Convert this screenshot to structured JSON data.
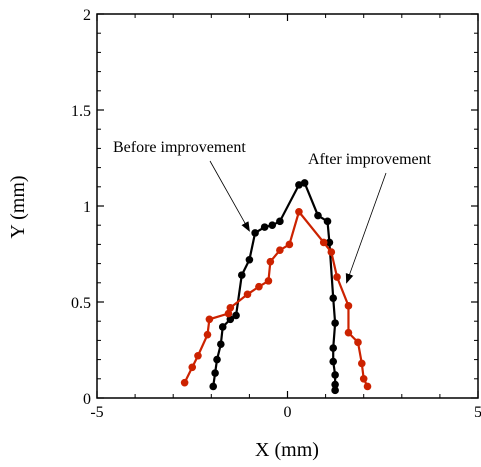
{
  "chart_data": {
    "type": "line",
    "xlabel": "X (mm)",
    "ylabel": "Y (mm)",
    "xlim": [
      -5,
      5
    ],
    "ylim": [
      0,
      2
    ],
    "xticks": [
      -5,
      0,
      5
    ],
    "yticks": [
      0,
      0.5,
      1,
      1.5,
      2
    ],
    "xtick_labels": [
      "-5",
      "0",
      "5"
    ],
    "ytick_labels": [
      "0",
      "0.5",
      "1",
      "1.5",
      "2"
    ],
    "grid": false,
    "series": [
      {
        "color": "#000000",
        "points": [
          [
            -1.95,
            0.06
          ],
          [
            -1.9,
            0.13
          ],
          [
            -1.85,
            0.2
          ],
          [
            -1.75,
            0.28
          ],
          [
            -1.7,
            0.37
          ],
          [
            -1.5,
            0.41
          ],
          [
            -1.35,
            0.43
          ],
          [
            -1.2,
            0.64
          ],
          [
            -1.0,
            0.72
          ],
          [
            -0.85,
            0.86
          ],
          [
            -0.6,
            0.89
          ],
          [
            -0.4,
            0.9
          ],
          [
            -0.2,
            0.92
          ],
          [
            0.3,
            1.11
          ],
          [
            0.45,
            1.12
          ],
          [
            0.8,
            0.95
          ],
          [
            1.05,
            0.92
          ],
          [
            1.1,
            0.81
          ],
          [
            1.2,
            0.52
          ],
          [
            1.25,
            0.39
          ],
          [
            1.2,
            0.26
          ],
          [
            1.2,
            0.19
          ],
          [
            1.25,
            0.12
          ],
          [
            1.25,
            0.07
          ],
          [
            1.25,
            0.04
          ]
        ]
      },
      {
        "color": "#cc2200",
        "points": [
          [
            -2.7,
            0.08
          ],
          [
            -2.5,
            0.16
          ],
          [
            -2.35,
            0.22
          ],
          [
            -2.1,
            0.33
          ],
          [
            -2.05,
            0.41
          ],
          [
            -1.55,
            0.44
          ],
          [
            -1.5,
            0.47
          ],
          [
            -1.05,
            0.54
          ],
          [
            -0.75,
            0.58
          ],
          [
            -0.5,
            0.61
          ],
          [
            -0.45,
            0.71
          ],
          [
            -0.2,
            0.77
          ],
          [
            0.05,
            0.8
          ],
          [
            0.3,
            0.97
          ],
          [
            0.95,
            0.81
          ],
          [
            1.15,
            0.76
          ],
          [
            1.3,
            0.63
          ],
          [
            1.6,
            0.48
          ],
          [
            1.6,
            0.34
          ],
          [
            1.85,
            0.29
          ],
          [
            1.95,
            0.18
          ],
          [
            2.0,
            0.1
          ],
          [
            2.1,
            0.06
          ]
        ]
      }
    ],
    "annotations": [
      {
        "text": "Before improvement",
        "target": [
          -1.0,
          0.87
        ]
      },
      {
        "text": "After improvement",
        "target": [
          1.55,
          0.6
        ]
      }
    ]
  }
}
